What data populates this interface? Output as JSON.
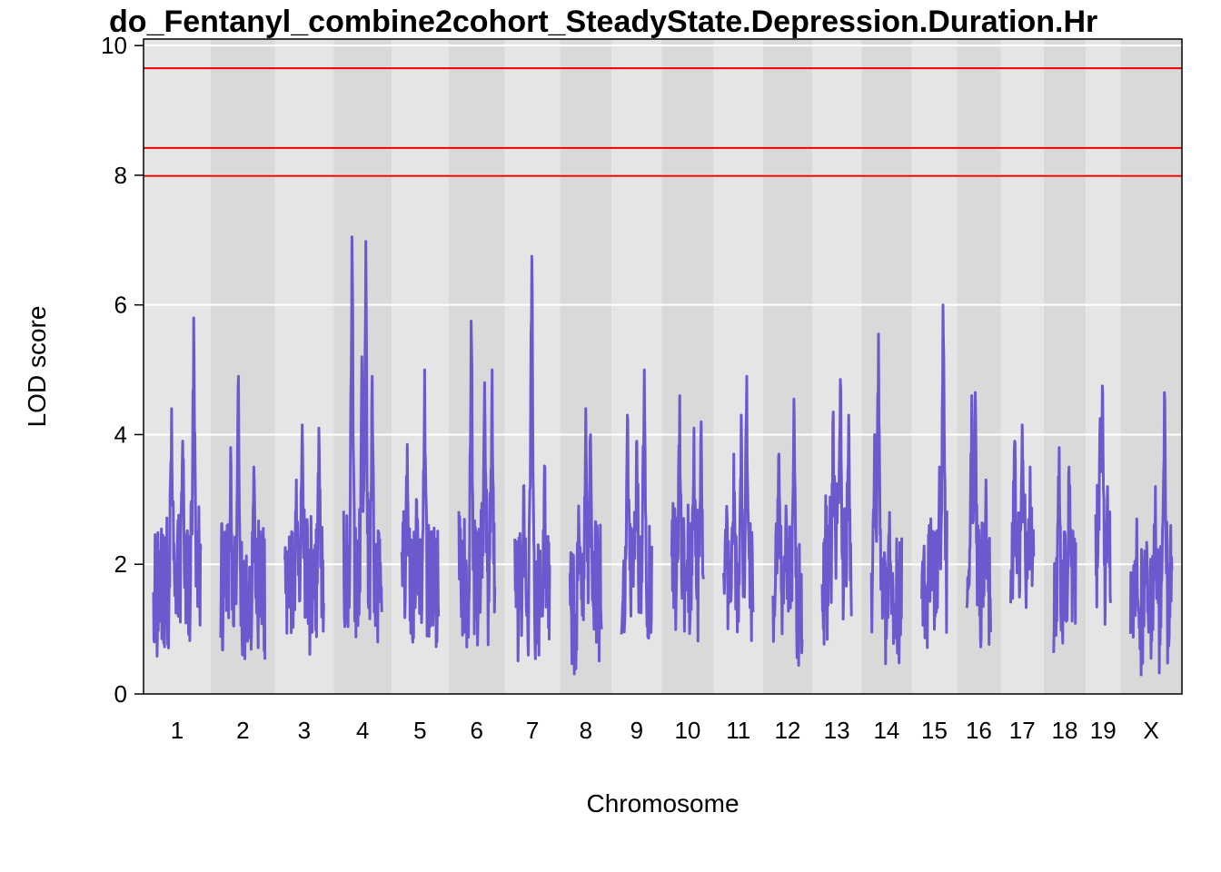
{
  "chart_data": {
    "type": "line",
    "title": "do_Fentanyl_combine2cohort_SteadyState.Depression.Duration.Hr",
    "xlabel": "Chromosome",
    "ylabel": "LOD score",
    "ylim": [
      0,
      10.1
    ],
    "yticks": [
      0,
      2,
      4,
      6,
      8,
      10
    ],
    "grid": true,
    "legend": "none",
    "colors": {
      "line": "#6A5ACD",
      "threshold": "#EE0000",
      "band_light": "#E5E5E5",
      "band_dark": "#D9D9D9",
      "gridline": "#FFFFFF"
    },
    "thresholds": [
      9.65,
      8.42,
      7.99
    ],
    "chromosomes": [
      {
        "label": "1",
        "length": 195,
        "baseline": 1.8,
        "peaks": [
          [
            0.85,
            5.8
          ],
          [
            0.38,
            4.4
          ],
          [
            0.62,
            3.9
          ]
        ]
      },
      {
        "label": "2",
        "length": 182,
        "baseline": 1.6,
        "peaks": [
          [
            0.4,
            4.9
          ],
          [
            0.22,
            3.8
          ],
          [
            0.75,
            3.5
          ]
        ]
      },
      {
        "label": "3",
        "length": 160,
        "baseline": 1.7,
        "peaks": [
          [
            0.45,
            4.15
          ],
          [
            0.88,
            4.1
          ],
          [
            0.3,
            3.3
          ]
        ]
      },
      {
        "label": "4",
        "length": 157,
        "baseline": 1.8,
        "peaks": [
          [
            0.22,
            7.05
          ],
          [
            0.58,
            6.98
          ],
          [
            0.48,
            5.2
          ],
          [
            0.75,
            4.9
          ]
        ]
      },
      {
        "label": "5",
        "length": 152,
        "baseline": 1.7,
        "peaks": [
          [
            0.62,
            5.0
          ],
          [
            0.15,
            3.85
          ],
          [
            0.4,
            3.0
          ]
        ]
      },
      {
        "label": "6",
        "length": 150,
        "baseline": 1.8,
        "peaks": [
          [
            0.35,
            5.75
          ],
          [
            0.92,
            5.0
          ],
          [
            0.72,
            4.8
          ]
        ]
      },
      {
        "label": "7",
        "length": 145,
        "baseline": 1.5,
        "peaks": [
          [
            0.48,
            6.75
          ],
          [
            0.25,
            3.2
          ],
          [
            0.85,
            3.5
          ]
        ]
      },
      {
        "label": "8",
        "length": 130,
        "baseline": 1.5,
        "peaks": [
          [
            0.5,
            4.4
          ],
          [
            0.65,
            4.0
          ],
          [
            0.28,
            2.9
          ]
        ]
      },
      {
        "label": "9",
        "length": 125,
        "baseline": 1.8,
        "peaks": [
          [
            0.75,
            5.0
          ],
          [
            0.2,
            4.3
          ],
          [
            0.5,
            3.9
          ]
        ]
      },
      {
        "label": "10",
        "length": 131,
        "baseline": 1.9,
        "peaks": [
          [
            0.25,
            4.6
          ],
          [
            0.92,
            4.2
          ],
          [
            0.7,
            4.1
          ]
        ]
      },
      {
        "label": "11",
        "length": 122,
        "baseline": 1.8,
        "peaks": [
          [
            0.78,
            4.9
          ],
          [
            0.6,
            4.3
          ],
          [
            0.35,
            3.7
          ]
        ]
      },
      {
        "label": "12",
        "length": 120,
        "baseline": 1.5,
        "peaks": [
          [
            0.72,
            4.55
          ],
          [
            0.2,
            3.7
          ],
          [
            0.45,
            2.9
          ]
        ]
      },
      {
        "label": "13",
        "length": 121,
        "baseline": 2.0,
        "peaks": [
          [
            0.62,
            4.85
          ],
          [
            0.38,
            4.35
          ],
          [
            0.9,
            4.3
          ]
        ]
      },
      {
        "label": "14",
        "length": 125,
        "baseline": 1.6,
        "peaks": [
          [
            0.23,
            5.55
          ],
          [
            0.1,
            4.0
          ],
          [
            0.6,
            2.8
          ]
        ]
      },
      {
        "label": "15",
        "length": 104,
        "baseline": 1.7,
        "peaks": [
          [
            0.85,
            6.0
          ],
          [
            0.7,
            3.5
          ],
          [
            0.3,
            2.6
          ]
        ]
      },
      {
        "label": "16",
        "length": 98,
        "baseline": 1.6,
        "peaks": [
          [
            0.2,
            4.6
          ],
          [
            0.35,
            4.65
          ],
          [
            0.8,
            3.3
          ]
        ]
      },
      {
        "label": "17",
        "length": 95,
        "baseline": 1.9,
        "peaks": [
          [
            0.5,
            4.15
          ],
          [
            0.18,
            3.9
          ],
          [
            0.85,
            3.5
          ]
        ]
      },
      {
        "label": "18",
        "length": 91,
        "baseline": 1.5,
        "peaks": [
          [
            0.25,
            3.8
          ],
          [
            0.7,
            3.5
          ],
          [
            0.5,
            2.5
          ]
        ]
      },
      {
        "label": "19",
        "length": 61,
        "baseline": 2.1,
        "peaks": [
          [
            0.45,
            4.75
          ],
          [
            0.3,
            4.25
          ],
          [
            0.8,
            3.2
          ]
        ]
      },
      {
        "label": "X",
        "length": 171,
        "baseline": 1.4,
        "peaks": [
          [
            0.82,
            4.65
          ],
          [
            0.15,
            2.7
          ],
          [
            0.6,
            3.2
          ],
          [
            0.97,
            2.6
          ]
        ]
      }
    ]
  }
}
